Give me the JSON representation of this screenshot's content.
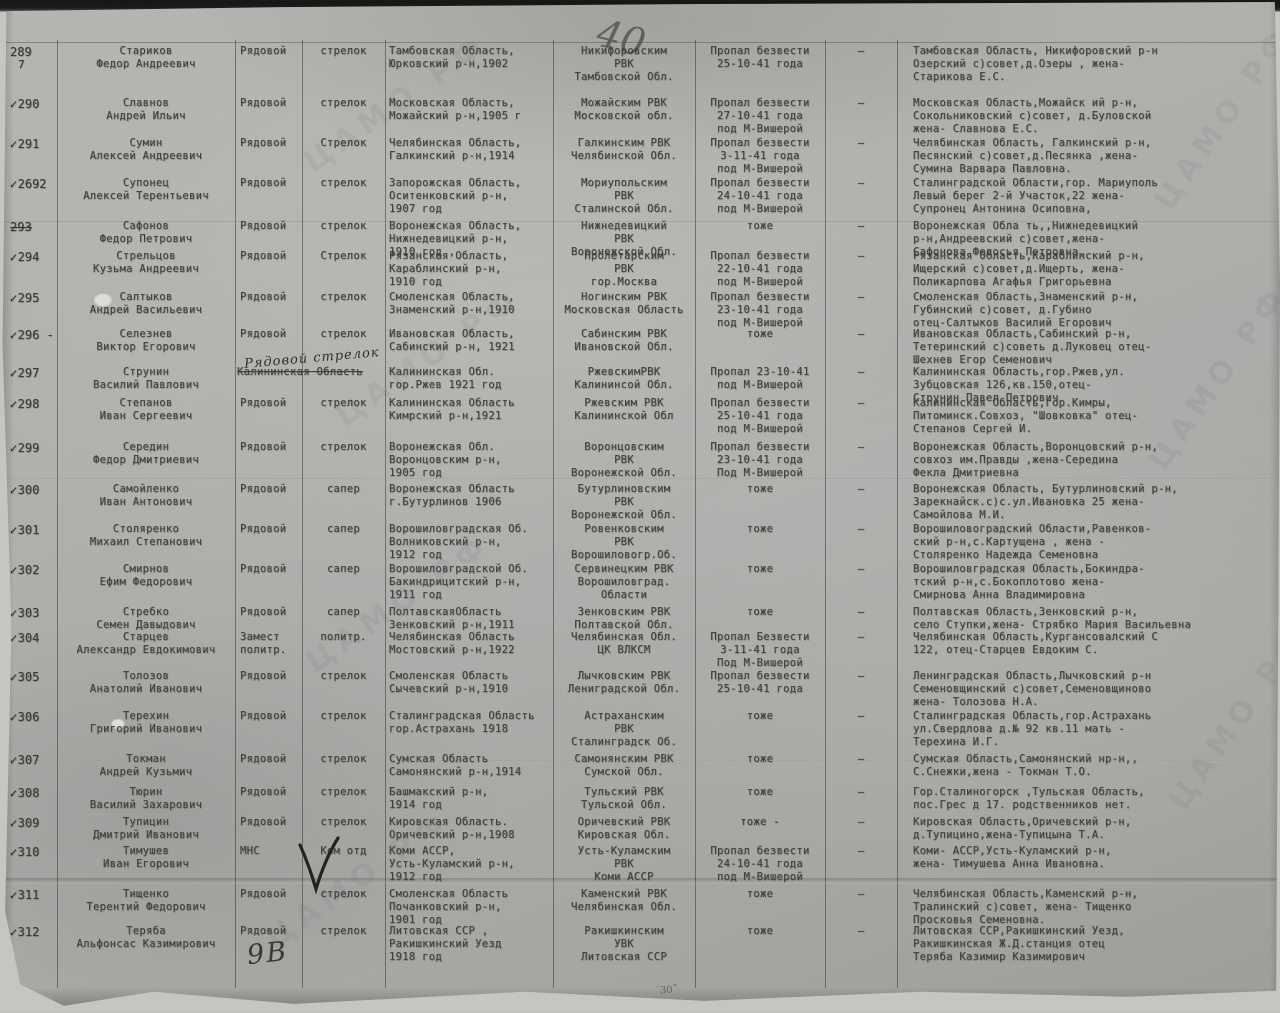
{
  "marks": {
    "page_number": "40",
    "bottom_mark": "9В",
    "scribble": "´30˚",
    "check_glyph": "✓",
    "watermark": "ЦАМО РФ"
  },
  "rows": [
    {
      "num": "289",
      "check": false,
      "sub": "7",
      "name": "Стариков\nФедор Андреевич",
      "rank": "Рядовой",
      "spec": "стрелок",
      "birth": "Тамбовская Область,\nЮрковский р-н,1902",
      "rvk": "Никифоровским\nРВК\nТамбовской Обл.",
      "status": "Пропал безвести\n25-10-41 года",
      "dash": "–",
      "family": "Тамбовская Область, Никифоровский р-н\nОзерский с)совет,д.Озеры , жена-\nСтарикова Е.С."
    },
    {
      "num": "290",
      "check": true,
      "name": "Славнов\nАндрей Ильич",
      "rank": "Рядовой",
      "spec": "стрелок",
      "birth": "Московская Область,\nМожайский р-н,1905 г",
      "rvk": "Можайским РВК\nМосковской обл.",
      "status": "Пропал безвести\n27-10-41 года\nпод М-Вишерой",
      "dash": "–",
      "family": "Московская Область,Можайск ий р-н,\nСокольниковский с)совет, д.Буловской\nжена- Славнова Е.С."
    },
    {
      "num": "291",
      "check": true,
      "name": "Сумин\nАлексей Андреевич",
      "rank": "Рядовой",
      "spec": "Стрелок",
      "birth": "Челябинская Область,\nГалкинский р-н,1914",
      "rvk": "Галкинским РВК\nЧелябинской Обл.",
      "status": "Пропал безвести\n3-11-41 года\nпод М-Вишерой",
      "dash": "–",
      "family": "Челябинская Область, Галкинский р-н,\nПесянский с)совет,д.Песянка ,жена-\nСумина Варвара Павловна."
    },
    {
      "num": "2692",
      "check": true,
      "name": "Супонец\nАлексей Терентьевич",
      "rank": "Рядовой",
      "spec": "стрелок",
      "birth": "Запорожская Область,\nОситенковский р-н,\n1907 год",
      "rvk": "Мориупольским\nРВК\nСталинской Обл.",
      "status": "Пропал безвести\n24-10-41 года\nпод М-Вишерой",
      "dash": "–",
      "family": "Сталинградской Области,гор. Мариуполь\nЛевый берег 2-й Участок,22 жена-\nСупронец Антонина Осиповна,"
    },
    {
      "num": "293",
      "check": false,
      "num_struck": true,
      "name": "Сафонов\nФедор Петрович",
      "rank": "Рядовой",
      "spec": "стрелок",
      "birth": "Воронежская Область,\nНижнедевицкий р-н,\n1910 год ,",
      "rvk": "Нижнедевицкий\nРВК\nВоронежской Обл.",
      "status": "тоже",
      "dash": "–",
      "family": "Воронежская Обла ть,,Нижнедевицкий\nр-н,Андреевский с)совет,жена-\nСафонова Федосья Петровна."
    },
    {
      "num": "294",
      "check": true,
      "name": "Стрельцов\nКузьма Андреевич",
      "rank": "Рядовой",
      "spec": "Стрелок",
      "birth": "Рязанская Область,\nКараблинский р-н,\n1910 год",
      "rvk": "Пролетарским\nРВК\nгор.Москва",
      "status": "Пропал безвести\n22-10-41 года\nпод М-Вишерой",
      "dash": "–",
      "family": "Рязанская Область,Караблинский р-н,\nИщерский с)совет,д.Ищерть, жена-\nПоликарпова Агафья Григорьевна"
    },
    {
      "num": "295",
      "check": true,
      "name": "Салтыков\nАндрей Васильевич",
      "rank": "Рядовой",
      "spec": "стрелок",
      "birth": "Смоленская Область,\nЗнаменский р-н,1910",
      "rvk": "Ногинским РВК\nМосковская Область",
      "status": "Пропал безвести\n23-10-41 года\nпод М-Вишерой",
      "dash": "–",
      "family": "Смоленская Область,Знаменский р-н,\nГубинский с)совет, д.Губино\nотец-Салтыков Василий Егорович"
    },
    {
      "num": "296 -",
      "check": true,
      "name": "Селезнев\nВиктор Егорович",
      "rank": "Рядовой",
      "spec": "стрелок",
      "birth": "Ивановская Область,\nСабинский р-н, 1921",
      "rvk": "Сабинским РВК\nИвановской Обл.",
      "status": "тоже",
      "dash": "–",
      "family": "Ивановская Область,Сабинский р-н,\nТетеринский с)советь д.Луковец отец-\nШехнев Егор Семенович"
    },
    {
      "num": "297",
      "check": true,
      "name": "Струнин\nВасилий Павлович",
      "rank": "",
      "spec": "",
      "hw_rank": "Рядовой  стрелок",
      "struck": "Калининская Область",
      "birth": "Калининская Обл.\nгор.Ржев 1921 год",
      "rvk": "РжевскимРВК\nКалининсой Обл.",
      "status": "Пропал 23-10-41\nпод М-Вишерой",
      "dash": "–",
      "family": "Калининская Область,гор.Ржев,ул.\nЗубцовская 126,кв.150,отец-\nСтрунин Павел Петрович"
    },
    {
      "num": "298",
      "check": true,
      "name": "Степанов\nИван Сергеевич",
      "rank": "Рядовой",
      "spec": "стрелок",
      "birth": "Калининская Область\nКимрский р-н,1921",
      "rvk": "Ржевским РВК\nКалининской Обл",
      "status": "Пропал безвести\n25-10-41 года\nпод М-Вишерой",
      "dash": "–",
      "family": "Калининская Область,гор.Кимры,\nПитоминск.Совхоз, \"Шовковка\" отец-\nСтепанов Сергей И."
    },
    {
      "num": "299",
      "check": true,
      "name": "Середин\nФедор Дмитриевич",
      "rank": "Рядовой",
      "spec": "стрелок",
      "birth": "Воронежская Обл.\nВоронцовским р-н,\n1905 год",
      "rvk": "Воронцовским\nРВК\nВоронежской Обл.",
      "status": "Пропал безвести\n23-10-41 года\nПод М-Вишерой",
      "dash": "–",
      "family": "Воронежская Область,Воронцовский р-н,\nсовхоз им.Правды ,жена-Середина\nФекла Дмитриевна"
    },
    {
      "num": "300",
      "check": true,
      "name": "Самойленко\nИван Антонович",
      "rank": "Рядовой",
      "spec": "сапер",
      "birth": "Воронежская Область\nг.Бутурлинов 1906",
      "rvk": "Бутурлиновским\nРВК\nВоронежской Обл.",
      "status": "тоже",
      "dash": "–",
      "family": "Воронежская Область, Бутурлиновский р-н,\nЗарекнайск.с)с.ул.Ивановка 25 жена-\nСамойлова М.И."
    },
    {
      "num": "301",
      "check": true,
      "name": "Столяренко\nМихаил Степанович",
      "rank": "Рядовой",
      "spec": "сапер",
      "birth": "Ворошиловградская Об.\nВолниковский р-н,\n1912 год",
      "rvk": "Ровенковским\nРВК\nВорошиловогр.Об.",
      "status": "тоже",
      "dash": "–",
      "family": "Ворошиловоградский Области,Равенков-\nский р-н,с.Картущена , жена -\nСтоляренко Надежда Семеновна"
    },
    {
      "num": "302",
      "check": true,
      "name": "Смирнов\nЕфим Федорович",
      "rank": "Рядовой",
      "spec": "сапер",
      "birth": "Ворошиловградской Об.\nБакиндрицитский р-н,\n1911 год",
      "rvk": "Сервинецким РВК\nВорошиловград.\nОбласти",
      "status": "тоже",
      "dash": "–",
      "family": "Ворошиловградская Область,Бокиндра-\nтский р-н,с.Бокоплотово жена-\nСмирнова Анна Владимировна"
    },
    {
      "num": "303",
      "check": true,
      "name": "Стребко\nСемен Давыдович",
      "rank": "Рядовой",
      "spec": "сапер",
      "birth": "ПолтавскаяОбласть\nЗенковский р-н,1911",
      "rvk": "Зенковским РВК\nПолтавской Обл.",
      "status": "тоже",
      "dash": "–",
      "family": "Полтавская Область,Зенковский р-н,\nсело Ступки,жена- Стрябко Мария Васильевна"
    },
    {
      "num": "304",
      "check": true,
      "name": "Старцев\nАлександр Евдокимович",
      "rank": "Замест\nполитр.",
      "spec": "политр.",
      "birth": "Челябинская Область\nМостовский р-н,1922",
      "rvk": "Челябинская Обл.\nЦК ВЛКСМ",
      "status": "Пропал Безвести\n3-11-41 года\nПод М-Вишерой",
      "dash": "–",
      "family": "Челябинская Область,Кургансовалский С\n122, отец-Старцев Евдоким С."
    },
    {
      "num": "305",
      "check": true,
      "name": "Толозов\nАнатолий Иванович",
      "rank": "Рядовой",
      "spec": "стрелок",
      "birth": "Смоленская Область\nСычевский р-н,1910",
      "rvk": "Лычковским РВК\nЛениградской Обл.",
      "status": "Пропал безвести\n25-10-41 года",
      "dash": "–",
      "family": "Ленинградская Область,Лычковский р-н\nСеменовщинский с)совет,Семеновщиново\nжена- Толозова Н.А."
    },
    {
      "num": "306",
      "check": true,
      "name": "Терехин\nГригорий Иванович",
      "rank": "Рядовой",
      "spec": "стрелок",
      "birth": "Сталинградская Область\nгор.Астрахань 1918",
      "rvk": "Астраханским\nРВК\nСталинградск Об.",
      "status": "тоже",
      "dash": "–",
      "family": "Сталинградская Область,гор.Астрахань\nул.Свердлова д.№ 92 кв.11 мать -\nТерехина И.Г."
    },
    {
      "num": "307",
      "check": true,
      "name": "Токман\nАндрей Кузьмич",
      "rank": "Рядовой",
      "spec": "стрелок",
      "birth": "Сумская Область\nСамонянский р-н,1914",
      "rvk": "Самонянским РВК\nСумской Обл.",
      "status": "тоже",
      "dash": "–",
      "family": "Сумская Область,Самонянский нр-н,,\nС.Снежки,жена - Токман Т.О."
    },
    {
      "num": "308",
      "check": true,
      "name": "Тюрин\nВасилий Захарович",
      "rank": "Рядовой",
      "spec": "стрелок",
      "birth": "Башмакский р-н,\n1914 год",
      "rvk": "Тульский РВК\nТульской Обл.",
      "status": "тоже",
      "dash": "–",
      "family": "Гор.Сталиногорск ,Тульская Область,\nпос.Грес д 17. родственников нет."
    },
    {
      "num": "309",
      "check": true,
      "name": "Тупицин\nДмитрий Иванович",
      "rank": "Рядовой",
      "spec": "стрелок",
      "birth": "Кировская Область.\nОричевский р-н,1908",
      "rvk": "Оричевский РВК\nКировская Обл.",
      "status": "тоже -",
      "dash": "–",
      "family": "Кировская Область,Оричевский р-н,\nд.Тупицино,жена-Тупицына Т.А."
    },
    {
      "num": "310",
      "check": true,
      "big_check": true,
      "name": "Тимушев\nИван Егорович",
      "rank": "МНС",
      "spec": "Ком отд",
      "birth": "Коми АССР,\nУсть-Куламский р-н,\n1912 год",
      "rvk": "Усть-Куламским\nРВК\nКоми АССР",
      "status": "Пропал безвести\n24-10-41 года\nпод М-Вишерой",
      "dash": "–",
      "family": "Коми- АССР,Усть-Куламский р-н,\nжена- Тимушева Анна Ивановна."
    },
    {
      "num": "311",
      "check": true,
      "name": "Тищенко\nТерентий Федорович",
      "rank": "Рядовой",
      "spec": "стрелок",
      "birth": "Смоленская Область\nПочанковский р-н,\n1901 год",
      "rvk": "Каменский РВК\nЧелябинская Обл.",
      "status": "тоже",
      "dash": "–",
      "family": "Челябинская Область,Каменский р-н,\nТралинский с)совет, жена- Тищенко\nПросковья Семеновна."
    },
    {
      "num": "312",
      "check": true,
      "name": "Теряба\nАльфонсас Казимирович",
      "rank": "Рядовой",
      "spec": "стрелок",
      "birth": "Литовская ССР ,\nРакишкинский Уезд\n1918 год",
      "rvk": "Ракишкинским\nУВК\nЛитовская ССР",
      "status": "тоже",
      "dash": "–",
      "family": "Литовская ССР,Ракишкинский Уезд,\nРакишкинская Ж.Д.станция отец\nТеряба Казимир Казимирович"
    }
  ]
}
